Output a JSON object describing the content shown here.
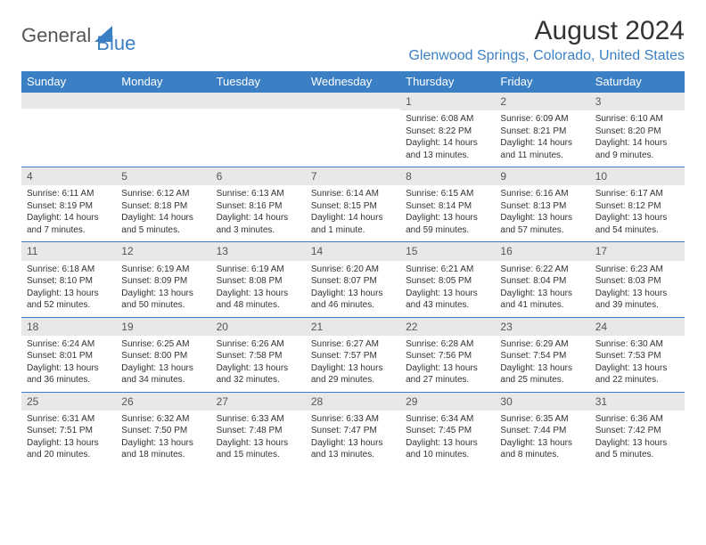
{
  "logo": {
    "text1": "General",
    "text2": "Blue"
  },
  "title": "August 2024",
  "location": "Glenwood Springs, Colorado, United States",
  "colors": {
    "header_bg": "#3b7fc4",
    "header_fg": "#ffffff",
    "daynum_bg": "#e8e8e8",
    "row_border": "#3b7fc4",
    "accent": "#3b7fc4",
    "text": "#333333",
    "background": "#ffffff"
  },
  "daysOfWeek": [
    "Sunday",
    "Monday",
    "Tuesday",
    "Wednesday",
    "Thursday",
    "Friday",
    "Saturday"
  ],
  "grid": [
    [
      {
        "num": "",
        "sunrise": "",
        "sunset": "",
        "daylight": ""
      },
      {
        "num": "",
        "sunrise": "",
        "sunset": "",
        "daylight": ""
      },
      {
        "num": "",
        "sunrise": "",
        "sunset": "",
        "daylight": ""
      },
      {
        "num": "",
        "sunrise": "",
        "sunset": "",
        "daylight": ""
      },
      {
        "num": "1",
        "sunrise": "Sunrise: 6:08 AM",
        "sunset": "Sunset: 8:22 PM",
        "daylight": "Daylight: 14 hours and 13 minutes."
      },
      {
        "num": "2",
        "sunrise": "Sunrise: 6:09 AM",
        "sunset": "Sunset: 8:21 PM",
        "daylight": "Daylight: 14 hours and 11 minutes."
      },
      {
        "num": "3",
        "sunrise": "Sunrise: 6:10 AM",
        "sunset": "Sunset: 8:20 PM",
        "daylight": "Daylight: 14 hours and 9 minutes."
      }
    ],
    [
      {
        "num": "4",
        "sunrise": "Sunrise: 6:11 AM",
        "sunset": "Sunset: 8:19 PM",
        "daylight": "Daylight: 14 hours and 7 minutes."
      },
      {
        "num": "5",
        "sunrise": "Sunrise: 6:12 AM",
        "sunset": "Sunset: 8:18 PM",
        "daylight": "Daylight: 14 hours and 5 minutes."
      },
      {
        "num": "6",
        "sunrise": "Sunrise: 6:13 AM",
        "sunset": "Sunset: 8:16 PM",
        "daylight": "Daylight: 14 hours and 3 minutes."
      },
      {
        "num": "7",
        "sunrise": "Sunrise: 6:14 AM",
        "sunset": "Sunset: 8:15 PM",
        "daylight": "Daylight: 14 hours and 1 minute."
      },
      {
        "num": "8",
        "sunrise": "Sunrise: 6:15 AM",
        "sunset": "Sunset: 8:14 PM",
        "daylight": "Daylight: 13 hours and 59 minutes."
      },
      {
        "num": "9",
        "sunrise": "Sunrise: 6:16 AM",
        "sunset": "Sunset: 8:13 PM",
        "daylight": "Daylight: 13 hours and 57 minutes."
      },
      {
        "num": "10",
        "sunrise": "Sunrise: 6:17 AM",
        "sunset": "Sunset: 8:12 PM",
        "daylight": "Daylight: 13 hours and 54 minutes."
      }
    ],
    [
      {
        "num": "11",
        "sunrise": "Sunrise: 6:18 AM",
        "sunset": "Sunset: 8:10 PM",
        "daylight": "Daylight: 13 hours and 52 minutes."
      },
      {
        "num": "12",
        "sunrise": "Sunrise: 6:19 AM",
        "sunset": "Sunset: 8:09 PM",
        "daylight": "Daylight: 13 hours and 50 minutes."
      },
      {
        "num": "13",
        "sunrise": "Sunrise: 6:19 AM",
        "sunset": "Sunset: 8:08 PM",
        "daylight": "Daylight: 13 hours and 48 minutes."
      },
      {
        "num": "14",
        "sunrise": "Sunrise: 6:20 AM",
        "sunset": "Sunset: 8:07 PM",
        "daylight": "Daylight: 13 hours and 46 minutes."
      },
      {
        "num": "15",
        "sunrise": "Sunrise: 6:21 AM",
        "sunset": "Sunset: 8:05 PM",
        "daylight": "Daylight: 13 hours and 43 minutes."
      },
      {
        "num": "16",
        "sunrise": "Sunrise: 6:22 AM",
        "sunset": "Sunset: 8:04 PM",
        "daylight": "Daylight: 13 hours and 41 minutes."
      },
      {
        "num": "17",
        "sunrise": "Sunrise: 6:23 AM",
        "sunset": "Sunset: 8:03 PM",
        "daylight": "Daylight: 13 hours and 39 minutes."
      }
    ],
    [
      {
        "num": "18",
        "sunrise": "Sunrise: 6:24 AM",
        "sunset": "Sunset: 8:01 PM",
        "daylight": "Daylight: 13 hours and 36 minutes."
      },
      {
        "num": "19",
        "sunrise": "Sunrise: 6:25 AM",
        "sunset": "Sunset: 8:00 PM",
        "daylight": "Daylight: 13 hours and 34 minutes."
      },
      {
        "num": "20",
        "sunrise": "Sunrise: 6:26 AM",
        "sunset": "Sunset: 7:58 PM",
        "daylight": "Daylight: 13 hours and 32 minutes."
      },
      {
        "num": "21",
        "sunrise": "Sunrise: 6:27 AM",
        "sunset": "Sunset: 7:57 PM",
        "daylight": "Daylight: 13 hours and 29 minutes."
      },
      {
        "num": "22",
        "sunrise": "Sunrise: 6:28 AM",
        "sunset": "Sunset: 7:56 PM",
        "daylight": "Daylight: 13 hours and 27 minutes."
      },
      {
        "num": "23",
        "sunrise": "Sunrise: 6:29 AM",
        "sunset": "Sunset: 7:54 PM",
        "daylight": "Daylight: 13 hours and 25 minutes."
      },
      {
        "num": "24",
        "sunrise": "Sunrise: 6:30 AM",
        "sunset": "Sunset: 7:53 PM",
        "daylight": "Daylight: 13 hours and 22 minutes."
      }
    ],
    [
      {
        "num": "25",
        "sunrise": "Sunrise: 6:31 AM",
        "sunset": "Sunset: 7:51 PM",
        "daylight": "Daylight: 13 hours and 20 minutes."
      },
      {
        "num": "26",
        "sunrise": "Sunrise: 6:32 AM",
        "sunset": "Sunset: 7:50 PM",
        "daylight": "Daylight: 13 hours and 18 minutes."
      },
      {
        "num": "27",
        "sunrise": "Sunrise: 6:33 AM",
        "sunset": "Sunset: 7:48 PM",
        "daylight": "Daylight: 13 hours and 15 minutes."
      },
      {
        "num": "28",
        "sunrise": "Sunrise: 6:33 AM",
        "sunset": "Sunset: 7:47 PM",
        "daylight": "Daylight: 13 hours and 13 minutes."
      },
      {
        "num": "29",
        "sunrise": "Sunrise: 6:34 AM",
        "sunset": "Sunset: 7:45 PM",
        "daylight": "Daylight: 13 hours and 10 minutes."
      },
      {
        "num": "30",
        "sunrise": "Sunrise: 6:35 AM",
        "sunset": "Sunset: 7:44 PM",
        "daylight": "Daylight: 13 hours and 8 minutes."
      },
      {
        "num": "31",
        "sunrise": "Sunrise: 6:36 AM",
        "sunset": "Sunset: 7:42 PM",
        "daylight": "Daylight: 13 hours and 5 minutes."
      }
    ]
  ]
}
